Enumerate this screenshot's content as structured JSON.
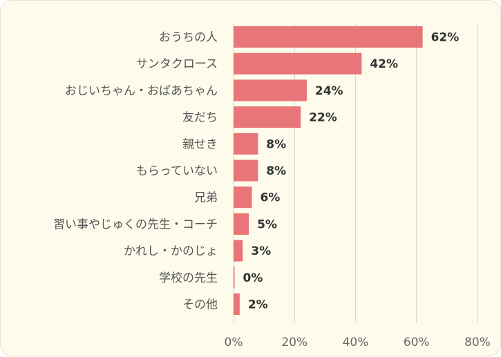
{
  "chart_data": {
    "type": "bar",
    "orientation": "horizontal",
    "categories": [
      "おうちの人",
      "サンタクロース",
      "おじいちゃん・おばあちゃん",
      "友だち",
      "親せき",
      "もらっていない",
      "兄弟",
      "習い事やじゅくの先生・コーチ",
      "かれし・かのじょ",
      "学校の先生",
      "その他"
    ],
    "values": [
      62,
      42,
      24,
      22,
      8,
      8,
      6,
      5,
      3,
      0,
      2
    ],
    "value_labels": [
      "62%",
      "42%",
      "24%",
      "22%",
      "8%",
      "8%",
      "6%",
      "5%",
      "3%",
      "0%",
      "2%"
    ],
    "xlim": [
      0,
      80
    ],
    "xticks": [
      0,
      20,
      40,
      60,
      80
    ],
    "xtick_labels": [
      "0%",
      "20%",
      "40%",
      "60%",
      "80%"
    ],
    "grid": true,
    "bar_color": "#e87577",
    "background_color": "#fdfbec"
  }
}
